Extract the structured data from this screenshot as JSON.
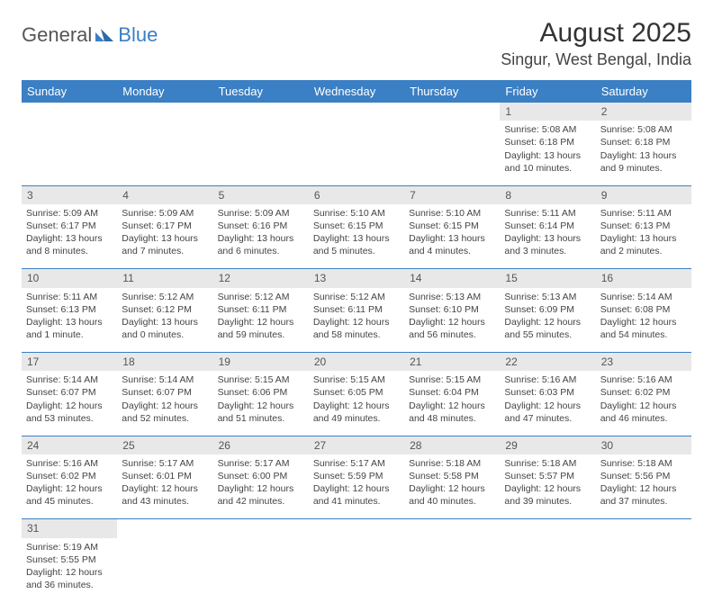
{
  "logo": {
    "text1": "General",
    "text2": "Blue"
  },
  "title": "August 2025",
  "location": "Singur, West Bengal, India",
  "dayHeaders": [
    "Sunday",
    "Monday",
    "Tuesday",
    "Wednesday",
    "Thursday",
    "Friday",
    "Saturday"
  ],
  "colors": {
    "header_bg": "#3b7fc4",
    "daynum_bg": "#e8e8e8"
  },
  "weeks": [
    [
      null,
      null,
      null,
      null,
      null,
      {
        "n": "1",
        "sr": "5:08 AM",
        "ss": "6:18 PM",
        "dl": "13 hours and 10 minutes."
      },
      {
        "n": "2",
        "sr": "5:08 AM",
        "ss": "6:18 PM",
        "dl": "13 hours and 9 minutes."
      }
    ],
    [
      {
        "n": "3",
        "sr": "5:09 AM",
        "ss": "6:17 PM",
        "dl": "13 hours and 8 minutes."
      },
      {
        "n": "4",
        "sr": "5:09 AM",
        "ss": "6:17 PM",
        "dl": "13 hours and 7 minutes."
      },
      {
        "n": "5",
        "sr": "5:09 AM",
        "ss": "6:16 PM",
        "dl": "13 hours and 6 minutes."
      },
      {
        "n": "6",
        "sr": "5:10 AM",
        "ss": "6:15 PM",
        "dl": "13 hours and 5 minutes."
      },
      {
        "n": "7",
        "sr": "5:10 AM",
        "ss": "6:15 PM",
        "dl": "13 hours and 4 minutes."
      },
      {
        "n": "8",
        "sr": "5:11 AM",
        "ss": "6:14 PM",
        "dl": "13 hours and 3 minutes."
      },
      {
        "n": "9",
        "sr": "5:11 AM",
        "ss": "6:13 PM",
        "dl": "13 hours and 2 minutes."
      }
    ],
    [
      {
        "n": "10",
        "sr": "5:11 AM",
        "ss": "6:13 PM",
        "dl": "13 hours and 1 minute."
      },
      {
        "n": "11",
        "sr": "5:12 AM",
        "ss": "6:12 PM",
        "dl": "13 hours and 0 minutes."
      },
      {
        "n": "12",
        "sr": "5:12 AM",
        "ss": "6:11 PM",
        "dl": "12 hours and 59 minutes."
      },
      {
        "n": "13",
        "sr": "5:12 AM",
        "ss": "6:11 PM",
        "dl": "12 hours and 58 minutes."
      },
      {
        "n": "14",
        "sr": "5:13 AM",
        "ss": "6:10 PM",
        "dl": "12 hours and 56 minutes."
      },
      {
        "n": "15",
        "sr": "5:13 AM",
        "ss": "6:09 PM",
        "dl": "12 hours and 55 minutes."
      },
      {
        "n": "16",
        "sr": "5:14 AM",
        "ss": "6:08 PM",
        "dl": "12 hours and 54 minutes."
      }
    ],
    [
      {
        "n": "17",
        "sr": "5:14 AM",
        "ss": "6:07 PM",
        "dl": "12 hours and 53 minutes."
      },
      {
        "n": "18",
        "sr": "5:14 AM",
        "ss": "6:07 PM",
        "dl": "12 hours and 52 minutes."
      },
      {
        "n": "19",
        "sr": "5:15 AM",
        "ss": "6:06 PM",
        "dl": "12 hours and 51 minutes."
      },
      {
        "n": "20",
        "sr": "5:15 AM",
        "ss": "6:05 PM",
        "dl": "12 hours and 49 minutes."
      },
      {
        "n": "21",
        "sr": "5:15 AM",
        "ss": "6:04 PM",
        "dl": "12 hours and 48 minutes."
      },
      {
        "n": "22",
        "sr": "5:16 AM",
        "ss": "6:03 PM",
        "dl": "12 hours and 47 minutes."
      },
      {
        "n": "23",
        "sr": "5:16 AM",
        "ss": "6:02 PM",
        "dl": "12 hours and 46 minutes."
      }
    ],
    [
      {
        "n": "24",
        "sr": "5:16 AM",
        "ss": "6:02 PM",
        "dl": "12 hours and 45 minutes."
      },
      {
        "n": "25",
        "sr": "5:17 AM",
        "ss": "6:01 PM",
        "dl": "12 hours and 43 minutes."
      },
      {
        "n": "26",
        "sr": "5:17 AM",
        "ss": "6:00 PM",
        "dl": "12 hours and 42 minutes."
      },
      {
        "n": "27",
        "sr": "5:17 AM",
        "ss": "5:59 PM",
        "dl": "12 hours and 41 minutes."
      },
      {
        "n": "28",
        "sr": "5:18 AM",
        "ss": "5:58 PM",
        "dl": "12 hours and 40 minutes."
      },
      {
        "n": "29",
        "sr": "5:18 AM",
        "ss": "5:57 PM",
        "dl": "12 hours and 39 minutes."
      },
      {
        "n": "30",
        "sr": "5:18 AM",
        "ss": "5:56 PM",
        "dl": "12 hours and 37 minutes."
      }
    ],
    [
      {
        "n": "31",
        "sr": "5:19 AM",
        "ss": "5:55 PM",
        "dl": "12 hours and 36 minutes."
      },
      null,
      null,
      null,
      null,
      null,
      null
    ]
  ],
  "labels": {
    "sunrise": "Sunrise:",
    "sunset": "Sunset:",
    "daylight": "Daylight:"
  }
}
